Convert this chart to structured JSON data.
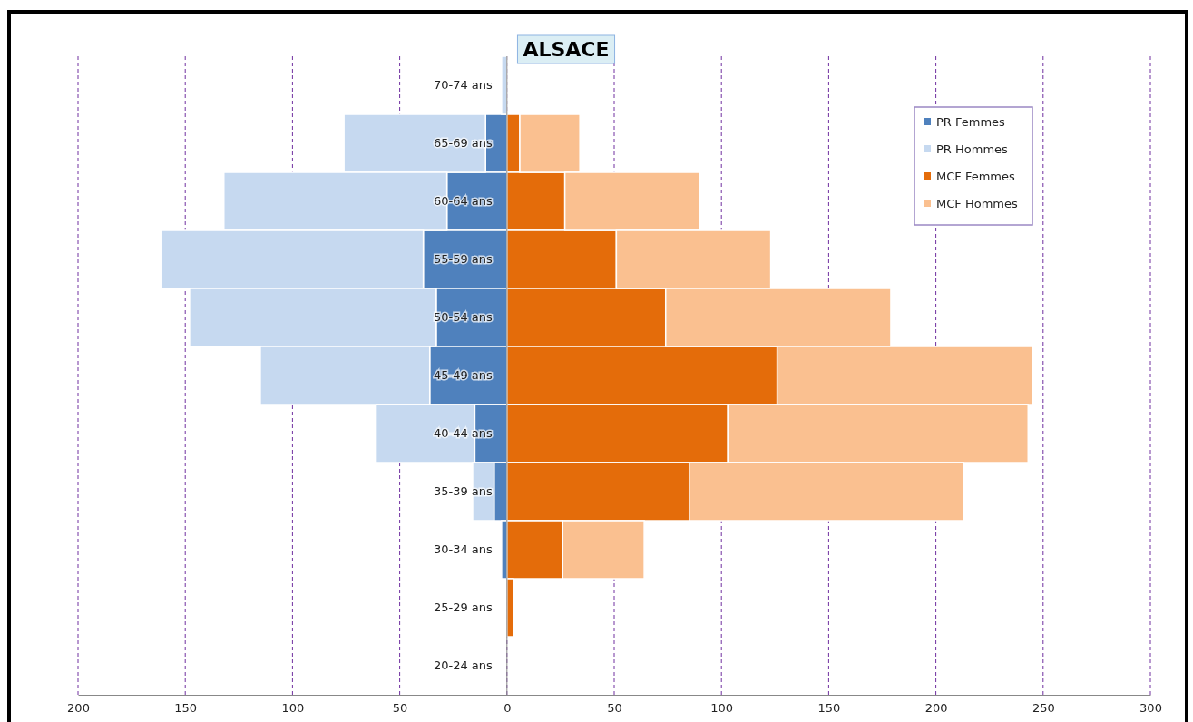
{
  "chart_data": {
    "type": "bar",
    "title": "ALSACE",
    "orientation": "horizontal",
    "stacked": true,
    "categories": [
      "70-74 ans",
      "65-69 ans",
      "60-64 ans",
      "55-59 ans",
      "50-54 ans",
      "45-49 ans",
      "40-44 ans",
      "35-39 ans",
      "30-34 ans",
      "25-29 ans",
      "20-24 ans"
    ],
    "series": [
      {
        "name": "PR Femmes",
        "color": "#4f81bd",
        "values": [
          null,
          -10,
          -28,
          -39,
          -33,
          -36,
          -15,
          -6,
          -2.5,
          0,
          0
        ]
      },
      {
        "name": "PR Hommes",
        "color": "#c6d9f0",
        "values": [
          -2.5,
          -66,
          -104,
          -122,
          -115,
          -79,
          -46,
          -10,
          0,
          0,
          0
        ]
      },
      {
        "name": "MCF Femmes",
        "color": "#e46c0a",
        "values": [
          0,
          6,
          27,
          51,
          74,
          126,
          103,
          85,
          26,
          3,
          0
        ]
      },
      {
        "name": "MCF Hommes",
        "color": "#fac090",
        "values": [
          0,
          28,
          63,
          72,
          105,
          119,
          140,
          128,
          38,
          0,
          0
        ]
      }
    ],
    "xlim": [
      -200,
      300
    ],
    "xticks": [
      {
        "value": -200,
        "label": "200"
      },
      {
        "value": -150,
        "label": "150"
      },
      {
        "value": -100,
        "label": "100"
      },
      {
        "value": -50,
        "label": "50"
      },
      0,
      50,
      100,
      150,
      200,
      250,
      300
    ],
    "grid": "x",
    "legend": "top right"
  }
}
